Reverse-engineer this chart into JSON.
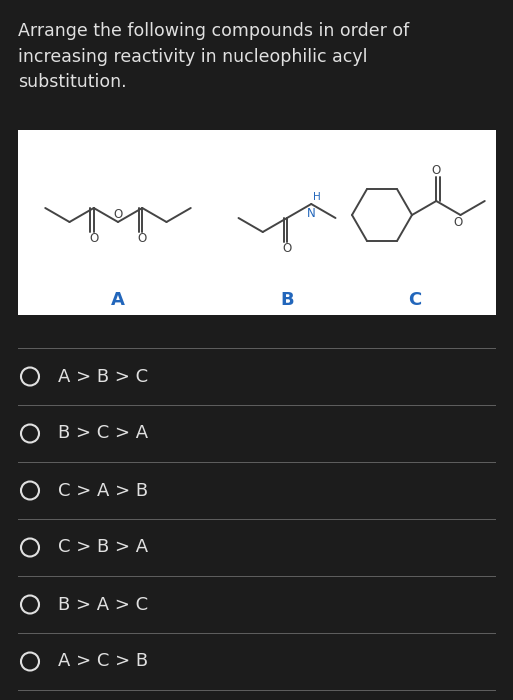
{
  "background_color": "#1c1c1c",
  "panel_bg": "#ffffff",
  "text_color": "#e0e0e0",
  "title_text": "Arrange the following compounds in order of\nincreasing reactivity in nucleophilic acyl\nsubstitution.",
  "title_fontsize": 12.5,
  "options": [
    "A > B > C",
    "B > C > A",
    "C > A > B",
    "C > B > A",
    "B > A > C",
    "A > C > B"
  ],
  "option_fontsize": 13.0,
  "labels": [
    "A",
    "B",
    "C"
  ],
  "label_color": "#2266bb",
  "label_fontsize": 13,
  "line_color": "#606060",
  "bond_color": "#444444",
  "bond_lw": 1.4
}
